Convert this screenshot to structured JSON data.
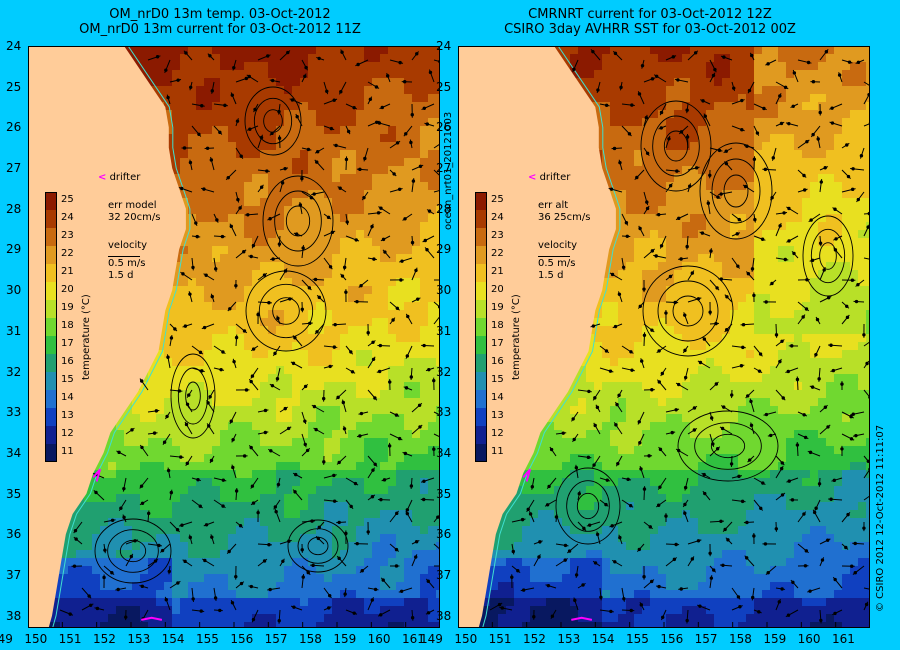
{
  "left_panel": {
    "title_line1": "OM_nrD0 13m temp. 03-Oct-2012",
    "title_line2": "OM_nrD0 13m current for 03-Oct-2012 11Z",
    "legend": {
      "err_label": "err model",
      "err_value": "32 20cm/s",
      "velocity_label": "velocity",
      "speed": "0.5 m/s",
      "duration": "1.5 d"
    }
  },
  "right_panel": {
    "title_line1": "CMRNRT current for 03-Oct-2012 12Z",
    "title_line2": "CSIRO 3day AVHRR SST for 03-Oct-2012 00Z",
    "legend": {
      "err_label": "err alt",
      "err_value": "36 25cm/s",
      "velocity_label": "velocity",
      "speed": "0.5 m/s",
      "duration": "1.5 d"
    }
  },
  "drifter_label": "drifter",
  "drifter_marker": "<",
  "colorbar": {
    "title": "temperature (°C)",
    "ticks": [
      "25",
      "24",
      "23",
      "22",
      "21",
      "20",
      "19",
      "18",
      "17",
      "16",
      "15",
      "14",
      "13",
      "12",
      "11"
    ],
    "colors": [
      "#8b1a00",
      "#a83a00",
      "#c86a10",
      "#e09a20",
      "#f0c020",
      "#e8e020",
      "#b8e028",
      "#70d830",
      "#30c040",
      "#20a070",
      "#2090b0",
      "#2070d0",
      "#1040c0",
      "#102090",
      "#081860"
    ]
  },
  "lat_labels": [
    "24",
    "25",
    "26",
    "27",
    "28",
    "29",
    "30",
    "31",
    "32",
    "33",
    "34",
    "35",
    "36",
    "37",
    "38"
  ],
  "lon_labels": [
    "149",
    "150",
    "151",
    "152",
    "153",
    "154",
    "155",
    "156",
    "157",
    "158",
    "159",
    "160",
    "161"
  ],
  "side_label_left": "ocean_nrt01_20121003",
  "side_label_right": "© CSIRO 2012   12-Oct-2012 11:11:07",
  "colors": {
    "background": "#00ccff",
    "land": "#ffcc99",
    "drifter": "#ff00ff",
    "coast": "#40e0d0"
  }
}
